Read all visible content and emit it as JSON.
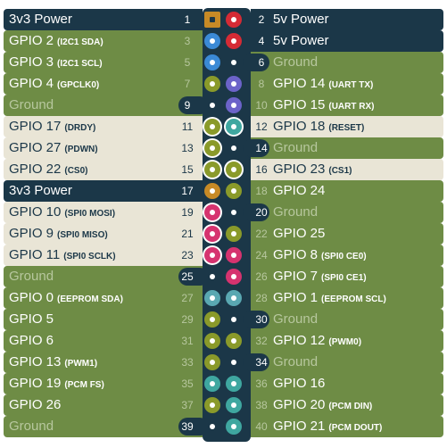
{
  "colors": {
    "power3v3": "#c78a26",
    "power5v": "#d52b35",
    "i2c": "#3b8ad6",
    "gpio": "#8a9a2a",
    "uart": "#6c63c9",
    "spi": "#d6336f",
    "eeprom": "#5aa8b2",
    "pcm": "#3fa7a0",
    "ground": "#1b3748"
  },
  "pins": [
    {
      "num": "1",
      "label": "3v3 Power",
      "sub": "",
      "kind": "power3v3",
      "style": "power"
    },
    {
      "num": "2",
      "label": "5v Power",
      "sub": "",
      "kind": "power5v",
      "style": "power"
    },
    {
      "num": "3",
      "label": "GPIO 2",
      "sub": "(I2C1 SDA)",
      "kind": "i2c",
      "style": "normal"
    },
    {
      "num": "4",
      "label": "5v Power",
      "sub": "",
      "kind": "power5v",
      "style": "power"
    },
    {
      "num": "5",
      "label": "GPIO 3",
      "sub": "(I2C1 SCL)",
      "kind": "i2c",
      "style": "normal"
    },
    {
      "num": "6",
      "label": "Ground",
      "sub": "",
      "kind": "ground",
      "style": "ground"
    },
    {
      "num": "7",
      "label": "GPIO 4",
      "sub": "(GPCLK0)",
      "kind": "gpio",
      "style": "normal"
    },
    {
      "num": "8",
      "label": "GPIO 14",
      "sub": "(UART TX)",
      "kind": "uart",
      "style": "normal"
    },
    {
      "num": "9",
      "label": "Ground",
      "sub": "",
      "kind": "ground",
      "style": "ground"
    },
    {
      "num": "10",
      "label": "GPIO 15",
      "sub": "(UART RX)",
      "kind": "uart",
      "style": "normal"
    },
    {
      "num": "11",
      "label": "GPIO 17",
      "sub": "(DRDY)",
      "kind": "gpio",
      "style": "highlight"
    },
    {
      "num": "12",
      "label": "GPIO 18",
      "sub": "(RESET)",
      "kind": "pcm",
      "style": "highlight"
    },
    {
      "num": "13",
      "label": "GPIO 27",
      "sub": "(PDWN)",
      "kind": "gpio",
      "style": "highlight"
    },
    {
      "num": "14",
      "label": "Ground",
      "sub": "",
      "kind": "ground",
      "style": "ground"
    },
    {
      "num": "15",
      "label": "GPIO 22",
      "sub": "(CS0)",
      "kind": "gpio",
      "style": "highlight"
    },
    {
      "num": "16",
      "label": "GPIO 23",
      "sub": "(CS1)",
      "kind": "gpio",
      "style": "highlight"
    },
    {
      "num": "17",
      "label": "3v3 Power",
      "sub": "",
      "kind": "power3v3",
      "style": "power"
    },
    {
      "num": "18",
      "label": "GPIO 24",
      "sub": "",
      "kind": "gpio",
      "style": "normal"
    },
    {
      "num": "19",
      "label": "GPIO 10",
      "sub": "(SPI0 MOSI)",
      "kind": "spi",
      "style": "highlight"
    },
    {
      "num": "20",
      "label": "Ground",
      "sub": "",
      "kind": "ground",
      "style": "ground"
    },
    {
      "num": "21",
      "label": "GPIO 9",
      "sub": "(SPI0 MISO)",
      "kind": "spi",
      "style": "highlight"
    },
    {
      "num": "22",
      "label": "GPIO 25",
      "sub": "",
      "kind": "gpio",
      "style": "normal"
    },
    {
      "num": "23",
      "label": "GPIO 11",
      "sub": "(SPI0 SCLK)",
      "kind": "spi",
      "style": "highlight"
    },
    {
      "num": "24",
      "label": "GPIO 8",
      "sub": "(SPI0 CE0)",
      "kind": "spi",
      "style": "normal"
    },
    {
      "num": "25",
      "label": "Ground",
      "sub": "",
      "kind": "ground",
      "style": "ground"
    },
    {
      "num": "26",
      "label": "GPIO 7",
      "sub": "(SPI0 CE1)",
      "kind": "spi",
      "style": "normal"
    },
    {
      "num": "27",
      "label": "GPIO 0",
      "sub": "(EEPROM SDA)",
      "kind": "eeprom",
      "style": "normal"
    },
    {
      "num": "28",
      "label": "GPIO 1",
      "sub": "(EEPROM SCL)",
      "kind": "eeprom",
      "style": "normal"
    },
    {
      "num": "29",
      "label": "GPIO 5",
      "sub": "",
      "kind": "gpio",
      "style": "normal"
    },
    {
      "num": "30",
      "label": "Ground",
      "sub": "",
      "kind": "ground",
      "style": "ground"
    },
    {
      "num": "31",
      "label": "GPIO 6",
      "sub": "",
      "kind": "gpio",
      "style": "normal"
    },
    {
      "num": "32",
      "label": "GPIO 12",
      "sub": "(PWM0)",
      "kind": "gpio",
      "style": "normal"
    },
    {
      "num": "33",
      "label": "GPIO 13",
      "sub": "(PWM1)",
      "kind": "gpio",
      "style": "normal"
    },
    {
      "num": "34",
      "label": "Ground",
      "sub": "",
      "kind": "ground",
      "style": "ground"
    },
    {
      "num": "35",
      "label": "GPIO 19",
      "sub": "(PCM FS)",
      "kind": "pcm",
      "style": "normal"
    },
    {
      "num": "36",
      "label": "GPIO 16",
      "sub": "",
      "kind": "pcm",
      "style": "normal"
    },
    {
      "num": "37",
      "label": "GPIO 26",
      "sub": "",
      "kind": "gpio",
      "style": "normal"
    },
    {
      "num": "38",
      "label": "GPIO 20",
      "sub": "(PCM DIN)",
      "kind": "pcm",
      "style": "normal"
    },
    {
      "num": "39",
      "label": "Ground",
      "sub": "",
      "kind": "ground",
      "style": "ground"
    },
    {
      "num": "40",
      "label": "GPIO 21",
      "sub": "(PCM DOUT)",
      "kind": "pcm",
      "style": "normal"
    }
  ]
}
